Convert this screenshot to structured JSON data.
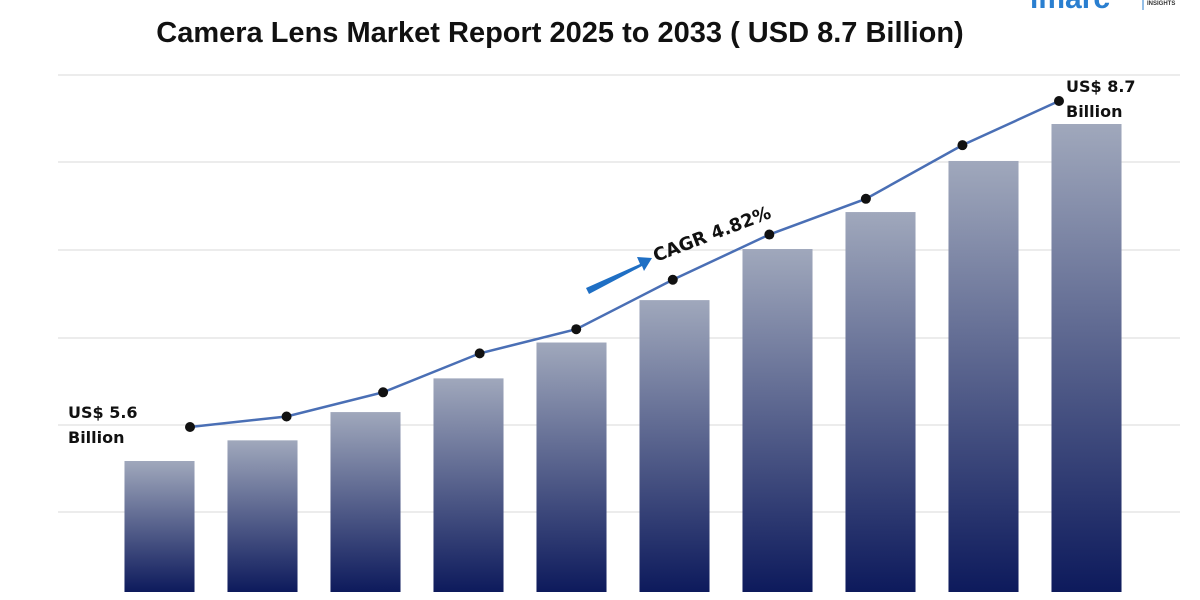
{
  "chart_data": {
    "type": "bar",
    "title": "Camera Lens Market Report 2025 to 2033 ( USD 8.7 Billion)",
    "logo": "imarc",
    "logo_sub": "INSIGHTS",
    "annotation": "CAGR 4.82%",
    "start_label": "US$ 5.6 Billion",
    "end_label": "US$ 8.7 Billion",
    "categories": [
      null,
      null,
      null,
      null,
      null,
      null,
      null,
      null,
      null,
      null
    ],
    "values": [
      5.6,
      5.79,
      6.05,
      6.36,
      6.69,
      7.08,
      7.55,
      7.89,
      8.36,
      8.7
    ],
    "line_values": [
      5.6,
      5.7,
      5.93,
      6.3,
      6.53,
      7.0,
      7.43,
      7.77,
      8.28,
      8.7
    ],
    "color": "#0d1a5c",
    "line_color": "#4a6fb5"
  }
}
